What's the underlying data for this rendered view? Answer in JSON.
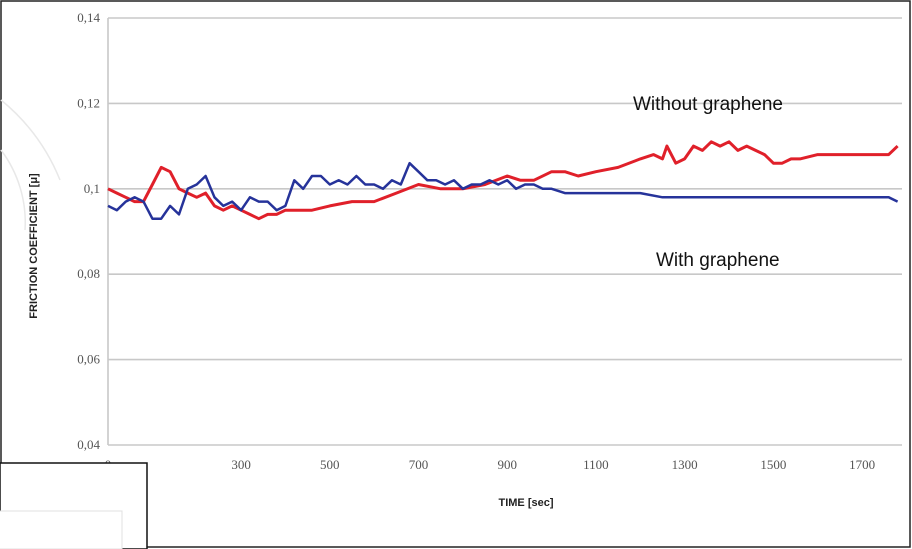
{
  "chart_data": {
    "type": "line",
    "title": "",
    "xlabel": "TIME [sec]",
    "ylabel": "FRICTION COEFFICIENT [μ]",
    "xlim": [
      0,
      1790
    ],
    "ylim": [
      0.04,
      0.14
    ],
    "x_ticks": [
      "0",
      "300",
      "500",
      "700",
      "900",
      "1100",
      "1300",
      "1500",
      "1700"
    ],
    "x_tick_values": [
      0,
      300,
      500,
      700,
      900,
      1100,
      1300,
      1500,
      1700
    ],
    "y_ticks": [
      "0,04",
      "0,06",
      "0,08",
      "0,1",
      "0,12",
      "0,14"
    ],
    "y_tick_values": [
      0.04,
      0.06,
      0.08,
      0.1,
      0.12,
      0.14
    ],
    "grid": "horizontal",
    "annotations": [
      {
        "text": "Without graphene",
        "series": 0
      },
      {
        "text": "With graphene",
        "series": 1
      }
    ],
    "series": [
      {
        "color": "#e0202a",
        "points": [
          [
            0,
            0.1
          ],
          [
            20,
            0.099
          ],
          [
            40,
            0.098
          ],
          [
            60,
            0.097
          ],
          [
            80,
            0.097
          ],
          [
            100,
            0.101
          ],
          [
            120,
            0.105
          ],
          [
            140,
            0.104
          ],
          [
            160,
            0.1
          ],
          [
            180,
            0.099
          ],
          [
            200,
            0.098
          ],
          [
            220,
            0.099
          ],
          [
            240,
            0.096
          ],
          [
            260,
            0.095
          ],
          [
            280,
            0.096
          ],
          [
            300,
            0.095
          ],
          [
            320,
            0.094
          ],
          [
            340,
            0.093
          ],
          [
            360,
            0.094
          ],
          [
            380,
            0.094
          ],
          [
            400,
            0.095
          ],
          [
            430,
            0.095
          ],
          [
            460,
            0.095
          ],
          [
            500,
            0.096
          ],
          [
            550,
            0.097
          ],
          [
            600,
            0.097
          ],
          [
            650,
            0.099
          ],
          [
            700,
            0.101
          ],
          [
            750,
            0.1
          ],
          [
            800,
            0.1
          ],
          [
            850,
            0.101
          ],
          [
            900,
            0.103
          ],
          [
            930,
            0.102
          ],
          [
            960,
            0.102
          ],
          [
            1000,
            0.104
          ],
          [
            1030,
            0.104
          ],
          [
            1060,
            0.103
          ],
          [
            1100,
            0.104
          ],
          [
            1150,
            0.105
          ],
          [
            1200,
            0.107
          ],
          [
            1230,
            0.108
          ],
          [
            1250,
            0.107
          ],
          [
            1260,
            0.11
          ],
          [
            1280,
            0.106
          ],
          [
            1300,
            0.107
          ],
          [
            1320,
            0.11
          ],
          [
            1340,
            0.109
          ],
          [
            1360,
            0.111
          ],
          [
            1380,
            0.11
          ],
          [
            1400,
            0.111
          ],
          [
            1420,
            0.109
          ],
          [
            1440,
            0.11
          ],
          [
            1460,
            0.109
          ],
          [
            1480,
            0.108
          ],
          [
            1500,
            0.106
          ],
          [
            1520,
            0.106
          ],
          [
            1540,
            0.107
          ],
          [
            1560,
            0.107
          ],
          [
            1600,
            0.108
          ],
          [
            1650,
            0.108
          ],
          [
            1700,
            0.108
          ],
          [
            1760,
            0.108
          ],
          [
            1780,
            0.11
          ]
        ]
      },
      {
        "color": "#26339a",
        "points": [
          [
            0,
            0.096
          ],
          [
            20,
            0.095
          ],
          [
            40,
            0.097
          ],
          [
            60,
            0.098
          ],
          [
            80,
            0.097
          ],
          [
            100,
            0.093
          ],
          [
            120,
            0.093
          ],
          [
            140,
            0.096
          ],
          [
            160,
            0.094
          ],
          [
            180,
            0.1
          ],
          [
            200,
            0.101
          ],
          [
            220,
            0.103
          ],
          [
            240,
            0.098
          ],
          [
            260,
            0.096
          ],
          [
            280,
            0.097
          ],
          [
            300,
            0.095
          ],
          [
            320,
            0.098
          ],
          [
            340,
            0.097
          ],
          [
            360,
            0.097
          ],
          [
            380,
            0.095
          ],
          [
            400,
            0.096
          ],
          [
            420,
            0.102
          ],
          [
            440,
            0.1
          ],
          [
            460,
            0.103
          ],
          [
            480,
            0.103
          ],
          [
            500,
            0.101
          ],
          [
            520,
            0.102
          ],
          [
            540,
            0.101
          ],
          [
            560,
            0.103
          ],
          [
            580,
            0.101
          ],
          [
            600,
            0.101
          ],
          [
            620,
            0.1
          ],
          [
            640,
            0.102
          ],
          [
            660,
            0.101
          ],
          [
            680,
            0.106
          ],
          [
            700,
            0.104
          ],
          [
            720,
            0.102
          ],
          [
            740,
            0.102
          ],
          [
            760,
            0.101
          ],
          [
            780,
            0.102
          ],
          [
            800,
            0.1
          ],
          [
            820,
            0.101
          ],
          [
            840,
            0.101
          ],
          [
            860,
            0.102
          ],
          [
            880,
            0.101
          ],
          [
            900,
            0.102
          ],
          [
            920,
            0.1
          ],
          [
            940,
            0.101
          ],
          [
            960,
            0.101
          ],
          [
            980,
            0.1
          ],
          [
            1000,
            0.1
          ],
          [
            1030,
            0.099
          ],
          [
            1060,
            0.099
          ],
          [
            1100,
            0.099
          ],
          [
            1150,
            0.099
          ],
          [
            1200,
            0.099
          ],
          [
            1250,
            0.098
          ],
          [
            1300,
            0.098
          ],
          [
            1350,
            0.098
          ],
          [
            1400,
            0.098
          ],
          [
            1450,
            0.098
          ],
          [
            1500,
            0.098
          ],
          [
            1550,
            0.098
          ],
          [
            1600,
            0.098
          ],
          [
            1650,
            0.098
          ],
          [
            1700,
            0.098
          ],
          [
            1760,
            0.098
          ],
          [
            1780,
            0.097
          ]
        ]
      }
    ]
  }
}
